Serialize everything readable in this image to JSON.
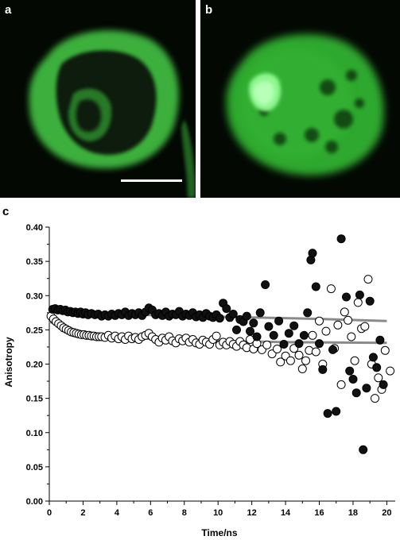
{
  "panels": {
    "a": {
      "label": "a"
    },
    "b": {
      "label": "b"
    },
    "c": {
      "label": "c"
    }
  },
  "colors": {
    "fluorescence": "#3fd63f",
    "background": "#030803",
    "fit_line": "#8a8a8a",
    "filled_marker": "#111111",
    "open_marker": "#ffffff"
  },
  "chart_data": {
    "type": "scatter",
    "xlabel": "Time/ns",
    "ylabel": "Anisotropy",
    "xlim": [
      0,
      20.5
    ],
    "ylim": [
      0,
      0.4
    ],
    "xticks": [
      0,
      2,
      4,
      6,
      8,
      10,
      12,
      14,
      16,
      18,
      20
    ],
    "yticks": [
      0.0,
      0.05,
      0.1,
      0.15,
      0.2,
      0.25,
      0.3,
      0.35,
      0.4
    ],
    "series": [
      {
        "marker": "filled",
        "points": [
          [
            0.2,
            0.28
          ],
          [
            0.35,
            0.281
          ],
          [
            0.5,
            0.279
          ],
          [
            0.65,
            0.28
          ],
          [
            0.8,
            0.278
          ],
          [
            0.95,
            0.279
          ],
          [
            1.1,
            0.276
          ],
          [
            1.25,
            0.277
          ],
          [
            1.4,
            0.275
          ],
          [
            1.55,
            0.276
          ],
          [
            1.7,
            0.274
          ],
          [
            1.85,
            0.276
          ],
          [
            2.0,
            0.273
          ],
          [
            2.15,
            0.275
          ],
          [
            2.3,
            0.272
          ],
          [
            2.5,
            0.274
          ],
          [
            2.7,
            0.272
          ],
          [
            2.9,
            0.273
          ],
          [
            3.1,
            0.27
          ],
          [
            3.3,
            0.272
          ],
          [
            3.5,
            0.27
          ],
          [
            3.7,
            0.273
          ],
          [
            3.9,
            0.271
          ],
          [
            4.1,
            0.274
          ],
          [
            4.3,
            0.272
          ],
          [
            4.5,
            0.276
          ],
          [
            4.7,
            0.271
          ],
          [
            4.9,
            0.274
          ],
          [
            5.1,
            0.272
          ],
          [
            5.3,
            0.275
          ],
          [
            5.5,
            0.271
          ],
          [
            5.7,
            0.276
          ],
          [
            5.9,
            0.282
          ],
          [
            6.1,
            0.279
          ],
          [
            6.3,
            0.272
          ],
          [
            6.5,
            0.274
          ],
          [
            6.7,
            0.271
          ],
          [
            6.9,
            0.276
          ],
          [
            7.1,
            0.27
          ],
          [
            7.3,
            0.273
          ],
          [
            7.5,
            0.272
          ],
          [
            7.7,
            0.277
          ],
          [
            7.9,
            0.27
          ],
          [
            8.1,
            0.273
          ],
          [
            8.3,
            0.271
          ],
          [
            8.5,
            0.275
          ],
          [
            8.7,
            0.269
          ],
          [
            8.9,
            0.272
          ],
          [
            9.1,
            0.268
          ],
          [
            9.3,
            0.274
          ],
          [
            9.5,
            0.27
          ],
          [
            9.7,
            0.268
          ],
          [
            9.9,
            0.272
          ],
          [
            10.1,
            0.267
          ],
          [
            10.3,
            0.289
          ],
          [
            10.5,
            0.281
          ],
          [
            10.7,
            0.268
          ],
          [
            10.9,
            0.273
          ],
          [
            11.1,
            0.25
          ],
          [
            11.3,
            0.265
          ],
          [
            11.5,
            0.262
          ],
          [
            11.7,
            0.27
          ],
          [
            11.9,
            0.248
          ],
          [
            12.1,
            0.26
          ],
          [
            12.3,
            0.24
          ],
          [
            12.5,
            0.275
          ],
          [
            12.8,
            0.316
          ],
          [
            13.0,
            0.255
          ],
          [
            13.3,
            0.242
          ],
          [
            13.6,
            0.263
          ],
          [
            13.9,
            0.229
          ],
          [
            14.2,
            0.245
          ],
          [
            14.5,
            0.256
          ],
          [
            14.8,
            0.23
          ],
          [
            15.1,
            0.242
          ],
          [
            15.3,
            0.275
          ],
          [
            15.5,
            0.352
          ],
          [
            15.6,
            0.362
          ],
          [
            15.8,
            0.313
          ],
          [
            16.0,
            0.23
          ],
          [
            16.2,
            0.192
          ],
          [
            16.5,
            0.128
          ],
          [
            16.8,
            0.221
          ],
          [
            17.0,
            0.131
          ],
          [
            17.3,
            0.383
          ],
          [
            17.6,
            0.298
          ],
          [
            17.8,
            0.19
          ],
          [
            18.0,
            0.178
          ],
          [
            18.2,
            0.158
          ],
          [
            18.4,
            0.301
          ],
          [
            18.6,
            0.075
          ],
          [
            18.8,
            0.165
          ],
          [
            19.0,
            0.292
          ],
          [
            19.2,
            0.21
          ],
          [
            19.4,
            0.195
          ],
          [
            19.6,
            0.235
          ],
          [
            19.8,
            0.17
          ]
        ]
      },
      {
        "marker": "open",
        "points": [
          [
            0.1,
            0.27
          ],
          [
            0.25,
            0.266
          ],
          [
            0.4,
            0.262
          ],
          [
            0.55,
            0.259
          ],
          [
            0.7,
            0.256
          ],
          [
            0.85,
            0.253
          ],
          [
            1.0,
            0.251
          ],
          [
            1.15,
            0.249
          ],
          [
            1.3,
            0.247
          ],
          [
            1.45,
            0.246
          ],
          [
            1.6,
            0.245
          ],
          [
            1.75,
            0.244
          ],
          [
            1.9,
            0.243
          ],
          [
            2.05,
            0.243
          ],
          [
            2.2,
            0.242
          ],
          [
            2.35,
            0.242
          ],
          [
            2.5,
            0.241
          ],
          [
            2.65,
            0.241
          ],
          [
            2.8,
            0.24
          ],
          [
            2.95,
            0.24
          ],
          [
            3.1,
            0.24
          ],
          [
            3.3,
            0.239
          ],
          [
            3.5,
            0.242
          ],
          [
            3.7,
            0.238
          ],
          [
            3.9,
            0.241
          ],
          [
            4.1,
            0.237
          ],
          [
            4.3,
            0.24
          ],
          [
            4.5,
            0.236
          ],
          [
            4.7,
            0.241
          ],
          [
            4.9,
            0.237
          ],
          [
            5.1,
            0.239
          ],
          [
            5.3,
            0.236
          ],
          [
            5.5,
            0.24
          ],
          [
            5.7,
            0.242
          ],
          [
            5.9,
            0.245
          ],
          [
            6.1,
            0.24
          ],
          [
            6.3,
            0.236
          ],
          [
            6.5,
            0.232
          ],
          [
            6.7,
            0.238
          ],
          [
            6.9,
            0.235
          ],
          [
            7.1,
            0.24
          ],
          [
            7.3,
            0.234
          ],
          [
            7.5,
            0.231
          ],
          [
            7.7,
            0.237
          ],
          [
            7.9,
            0.234
          ],
          [
            8.1,
            0.238
          ],
          [
            8.3,
            0.232
          ],
          [
            8.5,
            0.236
          ],
          [
            8.7,
            0.231
          ],
          [
            8.9,
            0.229
          ],
          [
            9.1,
            0.235
          ],
          [
            9.3,
            0.232
          ],
          [
            9.5,
            0.229
          ],
          [
            9.7,
            0.236
          ],
          [
            9.9,
            0.241
          ],
          [
            10.1,
            0.228
          ],
          [
            10.3,
            0.232
          ],
          [
            10.5,
            0.228
          ],
          [
            10.7,
            0.233
          ],
          [
            10.9,
            0.229
          ],
          [
            11.1,
            0.226
          ],
          [
            11.3,
            0.233
          ],
          [
            11.5,
            0.228
          ],
          [
            11.7,
            0.224
          ],
          [
            11.9,
            0.236
          ],
          [
            12.1,
            0.222
          ],
          [
            12.3,
            0.23
          ],
          [
            12.6,
            0.221
          ],
          [
            12.9,
            0.228
          ],
          [
            13.2,
            0.215
          ],
          [
            13.5,
            0.222
          ],
          [
            13.7,
            0.203
          ],
          [
            14.0,
            0.212
          ],
          [
            14.3,
            0.205
          ],
          [
            14.5,
            0.223
          ],
          [
            14.8,
            0.213
          ],
          [
            15.0,
            0.193
          ],
          [
            15.2,
            0.205
          ],
          [
            15.4,
            0.22
          ],
          [
            15.6,
            0.242
          ],
          [
            15.8,
            0.218
          ],
          [
            16.0,
            0.263
          ],
          [
            16.2,
            0.2
          ],
          [
            16.4,
            0.248
          ],
          [
            16.7,
            0.31
          ],
          [
            16.9,
            0.223
          ],
          [
            17.1,
            0.257
          ],
          [
            17.3,
            0.17
          ],
          [
            17.5,
            0.276
          ],
          [
            17.7,
            0.264
          ],
          [
            17.9,
            0.24
          ],
          [
            18.1,
            0.205
          ],
          [
            18.3,
            0.29
          ],
          [
            18.5,
            0.252
          ],
          [
            18.7,
            0.255
          ],
          [
            18.9,
            0.324
          ],
          [
            19.1,
            0.2
          ],
          [
            19.3,
            0.15
          ],
          [
            19.5,
            0.18
          ],
          [
            19.7,
            0.163
          ],
          [
            19.9,
            0.22
          ],
          [
            20.2,
            0.19
          ]
        ]
      }
    ],
    "fit_lines": [
      {
        "points": [
          [
            0.0,
            0.276
          ],
          [
            4,
            0.273
          ],
          [
            8,
            0.27
          ],
          [
            12,
            0.268
          ],
          [
            16,
            0.266
          ],
          [
            20,
            0.263
          ]
        ]
      },
      {
        "points": [
          [
            0.0,
            0.262
          ],
          [
            1,
            0.251
          ],
          [
            2,
            0.245
          ],
          [
            3,
            0.242
          ],
          [
            4,
            0.24
          ],
          [
            6,
            0.237
          ],
          [
            8,
            0.235
          ],
          [
            10,
            0.234
          ],
          [
            14,
            0.232
          ],
          [
            20,
            0.231
          ]
        ]
      }
    ]
  }
}
